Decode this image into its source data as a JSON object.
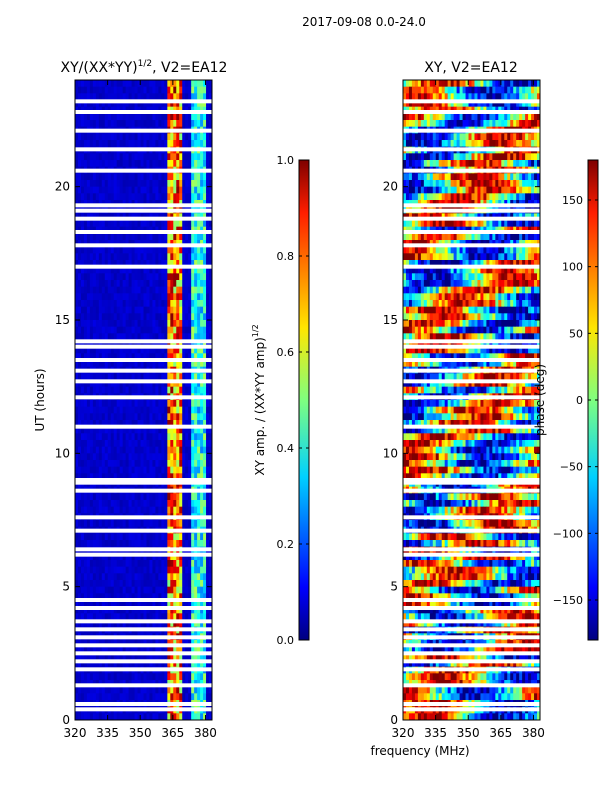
{
  "figure": {
    "suptitle": "2017-09-08 0.0-24.0",
    "shared_xlabel": "frequency (MHz)"
  },
  "chart_data": [
    {
      "type": "heatmap",
      "title": "XY/(XX*YY)",
      "title_exponent": "1/2",
      "title_suffix": ", V2=EA12",
      "ylabel": "UT (hours)",
      "xlim": [
        320,
        383
      ],
      "ylim": [
        0,
        24
      ],
      "x_ticks": [
        320,
        335,
        350,
        365,
        380
      ],
      "y_ticks": [
        0,
        5,
        10,
        15,
        20
      ],
      "colorscale": "jet",
      "features": {
        "low_band_level": 0.05,
        "mid_band_center_mhz": 366,
        "mid_band_level": 0.75,
        "high_band_center_mhz": 377,
        "high_band_level": 0.4
      },
      "flagged_hours": [
        0.4,
        0.6,
        1.3,
        1.9,
        2.2,
        2.5,
        2.8,
        3.1,
        3.4,
        3.7,
        4.2,
        4.5,
        6.2,
        6.4,
        7.1,
        7.6,
        8.6,
        8.9,
        9.0,
        11.0,
        12.1,
        12.7,
        13.1,
        13.5,
        14.0,
        14.2,
        17.0,
        17.8,
        18.3,
        18.8,
        19.1,
        19.3,
        20.6,
        21.4,
        22.1,
        22.8,
        23.2
      ]
    },
    {
      "type": "heatmap",
      "title": "XY, V2=EA12",
      "xlim": [
        320,
        383
      ],
      "ylim": [
        0,
        24
      ],
      "x_ticks": [
        320,
        335,
        350,
        365,
        380
      ],
      "y_ticks": [
        0,
        5,
        10,
        15,
        20
      ],
      "colorscale": "jet",
      "flagged_hours": [
        0.4,
        0.6,
        1.3,
        1.9,
        2.2,
        2.5,
        2.8,
        3.1,
        3.4,
        3.7,
        4.2,
        4.5,
        6.2,
        6.4,
        7.1,
        7.6,
        8.6,
        8.9,
        9.0,
        11.0,
        12.1,
        12.7,
        13.1,
        13.5,
        14.0,
        14.2,
        17.0,
        17.8,
        18.3,
        18.8,
        19.1,
        19.3,
        20.6,
        21.4,
        22.1,
        22.8,
        23.2
      ]
    }
  ],
  "colorbars": [
    {
      "label": "XY amp. / (XX*YY amp)",
      "label_exponent": "1/2",
      "range": [
        0.0,
        1.0
      ],
      "ticks": [
        0.0,
        0.2,
        0.4,
        0.6,
        0.8,
        1.0
      ],
      "tick_labels": [
        "0.0",
        "0.2",
        "0.4",
        "0.6",
        "0.8",
        "1.0"
      ]
    },
    {
      "label": "phase (deg)",
      "range": [
        -180,
        180
      ],
      "ticks": [
        -150,
        -100,
        -50,
        0,
        50,
        100,
        150
      ],
      "tick_labels": [
        "−150",
        "−100",
        "−50",
        "0",
        "50",
        "100",
        "150"
      ]
    }
  ]
}
